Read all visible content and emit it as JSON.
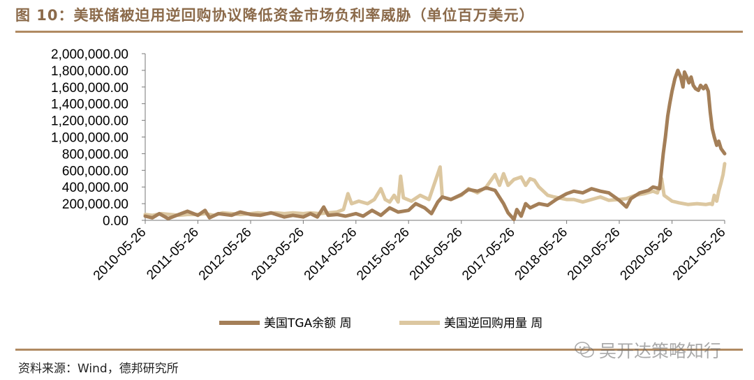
{
  "figure": {
    "title": "图 10：美联储被迫用逆回购协议降低资金市场负利率威胁（单位百万美元）",
    "source": "资料来源：Wind，德邦研究所",
    "watermark": "吴开达策略知行",
    "rule_color": "#b08a62"
  },
  "chart_data": {
    "type": "line",
    "title": "",
    "xlabel": "",
    "ylabel": "",
    "ylim": [
      0,
      2000000
    ],
    "yticks": [
      "2,000,000.00",
      "1,800,000.00",
      "1,600,000.00",
      "1,400,000.00",
      "1,200,000.00",
      "1,000,000.00",
      "800,000.00",
      "600,000.00",
      "400,000.00",
      "200,000.00",
      "0.00"
    ],
    "xticks": [
      "2010-05-26",
      "2011-05-26",
      "2012-05-26",
      "2013-05-26",
      "2014-05-26",
      "2015-05-26",
      "2016-05-26",
      "2017-05-26",
      "2018-05-26",
      "2019-05-26",
      "2020-05-26",
      "2021-05-26"
    ],
    "xlim": [
      "2010-05-26",
      "2021-05-26"
    ],
    "grid": false,
    "legend_position": "bottom",
    "series": [
      {
        "name": "美国TGA余额 周",
        "color": "#a47f58",
        "points": [
          [
            "2010-05-26",
            50000
          ],
          [
            "2010-07-15",
            30000
          ],
          [
            "2010-09-01",
            80000
          ],
          [
            "2010-11-01",
            20000
          ],
          [
            "2011-01-15",
            70000
          ],
          [
            "2011-03-15",
            110000
          ],
          [
            "2011-05-26",
            60000
          ],
          [
            "2011-07-15",
            120000
          ],
          [
            "2011-08-15",
            30000
          ],
          [
            "2011-10-15",
            80000
          ],
          [
            "2012-01-15",
            60000
          ],
          [
            "2012-03-15",
            100000
          ],
          [
            "2012-05-26",
            70000
          ],
          [
            "2012-08-01",
            60000
          ],
          [
            "2012-10-15",
            90000
          ],
          [
            "2013-01-15",
            40000
          ],
          [
            "2013-03-15",
            60000
          ],
          [
            "2013-05-26",
            40000
          ],
          [
            "2013-07-15",
            80000
          ],
          [
            "2013-09-01",
            40000
          ],
          [
            "2013-10-15",
            160000
          ],
          [
            "2013-11-15",
            60000
          ],
          [
            "2014-01-15",
            70000
          ],
          [
            "2014-03-15",
            50000
          ],
          [
            "2014-05-26",
            80000
          ],
          [
            "2014-07-15",
            50000
          ],
          [
            "2014-09-15",
            120000
          ],
          [
            "2014-11-15",
            60000
          ],
          [
            "2015-01-15",
            150000
          ],
          [
            "2015-03-15",
            100000
          ],
          [
            "2015-05-26",
            120000
          ],
          [
            "2015-07-15",
            200000
          ],
          [
            "2015-09-15",
            150000
          ],
          [
            "2015-11-01",
            80000
          ],
          [
            "2015-12-15",
            220000
          ],
          [
            "2016-01-15",
            280000
          ],
          [
            "2016-03-15",
            250000
          ],
          [
            "2016-05-26",
            310000
          ],
          [
            "2016-07-15",
            370000
          ],
          [
            "2016-09-15",
            350000
          ],
          [
            "2016-11-15",
            390000
          ],
          [
            "2017-01-15",
            360000
          ],
          [
            "2017-03-15",
            200000
          ],
          [
            "2017-04-15",
            90000
          ],
          [
            "2017-05-26",
            10000
          ],
          [
            "2017-06-15",
            130000
          ],
          [
            "2017-07-15",
            50000
          ],
          [
            "2017-08-15",
            200000
          ],
          [
            "2017-09-15",
            150000
          ],
          [
            "2017-11-15",
            200000
          ],
          [
            "2018-01-15",
            180000
          ],
          [
            "2018-03-15",
            250000
          ],
          [
            "2018-05-26",
            320000
          ],
          [
            "2018-07-15",
            350000
          ],
          [
            "2018-09-15",
            330000
          ],
          [
            "2018-11-15",
            380000
          ],
          [
            "2019-01-15",
            350000
          ],
          [
            "2019-03-15",
            330000
          ],
          [
            "2019-05-26",
            240000
          ],
          [
            "2019-07-15",
            160000
          ],
          [
            "2019-08-15",
            260000
          ],
          [
            "2019-10-15",
            330000
          ],
          [
            "2019-12-15",
            360000
          ],
          [
            "2020-01-15",
            400000
          ],
          [
            "2020-03-01",
            380000
          ],
          [
            "2020-03-26",
            800000
          ],
          [
            "2020-04-10",
            1000000
          ],
          [
            "2020-04-26",
            1250000
          ],
          [
            "2020-05-10",
            1400000
          ],
          [
            "2020-05-26",
            1550000
          ],
          [
            "2020-06-15",
            1700000
          ],
          [
            "2020-07-05",
            1800000
          ],
          [
            "2020-07-25",
            1720000
          ],
          [
            "2020-08-10",
            1600000
          ],
          [
            "2020-08-20",
            1780000
          ],
          [
            "2020-09-05",
            1720000
          ],
          [
            "2020-09-20",
            1650000
          ],
          [
            "2020-10-05",
            1720000
          ],
          [
            "2020-10-20",
            1620000
          ],
          [
            "2020-11-05",
            1580000
          ],
          [
            "2020-11-25",
            1560000
          ],
          [
            "2020-12-10",
            1620000
          ],
          [
            "2020-12-30",
            1580000
          ],
          [
            "2021-01-15",
            1620000
          ],
          [
            "2021-02-01",
            1550000
          ],
          [
            "2021-02-15",
            1300000
          ],
          [
            "2021-03-01",
            1100000
          ],
          [
            "2021-03-15",
            1000000
          ],
          [
            "2021-04-01",
            900000
          ],
          [
            "2021-04-15",
            950000
          ],
          [
            "2021-05-01",
            860000
          ],
          [
            "2021-05-26",
            800000
          ]
        ]
      },
      {
        "name": "美国逆回购用量 周",
        "color": "#dcc7a0",
        "points": [
          [
            "2010-05-26",
            70000
          ],
          [
            "2010-07-15",
            60000
          ],
          [
            "2010-09-15",
            80000
          ],
          [
            "2010-11-15",
            70000
          ],
          [
            "2011-01-15",
            60000
          ],
          [
            "2011-03-15",
            70000
          ],
          [
            "2011-05-26",
            70000
          ],
          [
            "2011-07-15",
            80000
          ],
          [
            "2011-09-15",
            60000
          ],
          [
            "2011-11-15",
            90000
          ],
          [
            "2012-01-15",
            80000
          ],
          [
            "2012-03-15",
            70000
          ],
          [
            "2012-05-26",
            80000
          ],
          [
            "2012-07-15",
            90000
          ],
          [
            "2012-09-15",
            80000
          ],
          [
            "2012-11-15",
            90000
          ],
          [
            "2013-01-15",
            80000
          ],
          [
            "2013-03-15",
            90000
          ],
          [
            "2013-05-26",
            80000
          ],
          [
            "2013-07-15",
            90000
          ],
          [
            "2013-09-15",
            80000
          ],
          [
            "2013-11-15",
            90000
          ],
          [
            "2014-01-15",
            100000
          ],
          [
            "2014-03-01",
            130000
          ],
          [
            "2014-04-01",
            320000
          ],
          [
            "2014-04-26",
            200000
          ],
          [
            "2014-06-15",
            230000
          ],
          [
            "2014-08-15",
            200000
          ],
          [
            "2014-10-01",
            250000
          ],
          [
            "2014-11-15",
            380000
          ],
          [
            "2014-12-15",
            250000
          ],
          [
            "2015-01-15",
            220000
          ],
          [
            "2015-02-15",
            300000
          ],
          [
            "2015-03-15",
            220000
          ],
          [
            "2015-04-01",
            530000
          ],
          [
            "2015-04-20",
            270000
          ],
          [
            "2015-06-15",
            230000
          ],
          [
            "2015-08-15",
            300000
          ],
          [
            "2015-10-15",
            250000
          ],
          [
            "2015-12-31",
            640000
          ],
          [
            "2016-01-15",
            280000
          ],
          [
            "2016-03-15",
            250000
          ],
          [
            "2016-05-26",
            300000
          ],
          [
            "2016-07-15",
            380000
          ],
          [
            "2016-09-15",
            330000
          ],
          [
            "2016-11-15",
            400000
          ],
          [
            "2017-01-15",
            550000
          ],
          [
            "2017-02-15",
            420000
          ],
          [
            "2017-03-15",
            560000
          ],
          [
            "2017-04-15",
            420000
          ],
          [
            "2017-05-26",
            490000
          ],
          [
            "2017-07-15",
            520000
          ],
          [
            "2017-08-15",
            420000
          ],
          [
            "2017-09-15",
            500000
          ],
          [
            "2017-10-15",
            480000
          ],
          [
            "2017-11-15",
            400000
          ],
          [
            "2018-01-15",
            300000
          ],
          [
            "2018-03-01",
            280000
          ],
          [
            "2018-05-26",
            250000
          ],
          [
            "2018-07-15",
            250000
          ],
          [
            "2018-09-15",
            220000
          ],
          [
            "2018-11-15",
            250000
          ],
          [
            "2019-01-15",
            280000
          ],
          [
            "2019-03-15",
            240000
          ],
          [
            "2019-05-26",
            250000
          ],
          [
            "2019-07-15",
            260000
          ],
          [
            "2019-09-15",
            300000
          ],
          [
            "2019-11-15",
            320000
          ],
          [
            "2020-01-15",
            350000
          ],
          [
            "2020-02-15",
            330000
          ],
          [
            "2020-03-15",
            500000
          ],
          [
            "2020-04-01",
            300000
          ],
          [
            "2020-05-26",
            230000
          ],
          [
            "2020-07-15",
            210000
          ],
          [
            "2020-09-15",
            190000
          ],
          [
            "2020-11-15",
            200000
          ],
          [
            "2021-01-15",
            190000
          ],
          [
            "2021-02-15",
            200000
          ],
          [
            "2021-03-01",
            190000
          ],
          [
            "2021-03-15",
            300000
          ],
          [
            "2021-04-01",
            230000
          ],
          [
            "2021-04-15",
            350000
          ],
          [
            "2021-05-01",
            450000
          ],
          [
            "2021-05-15",
            550000
          ],
          [
            "2021-05-26",
            680000
          ]
        ]
      }
    ]
  }
}
